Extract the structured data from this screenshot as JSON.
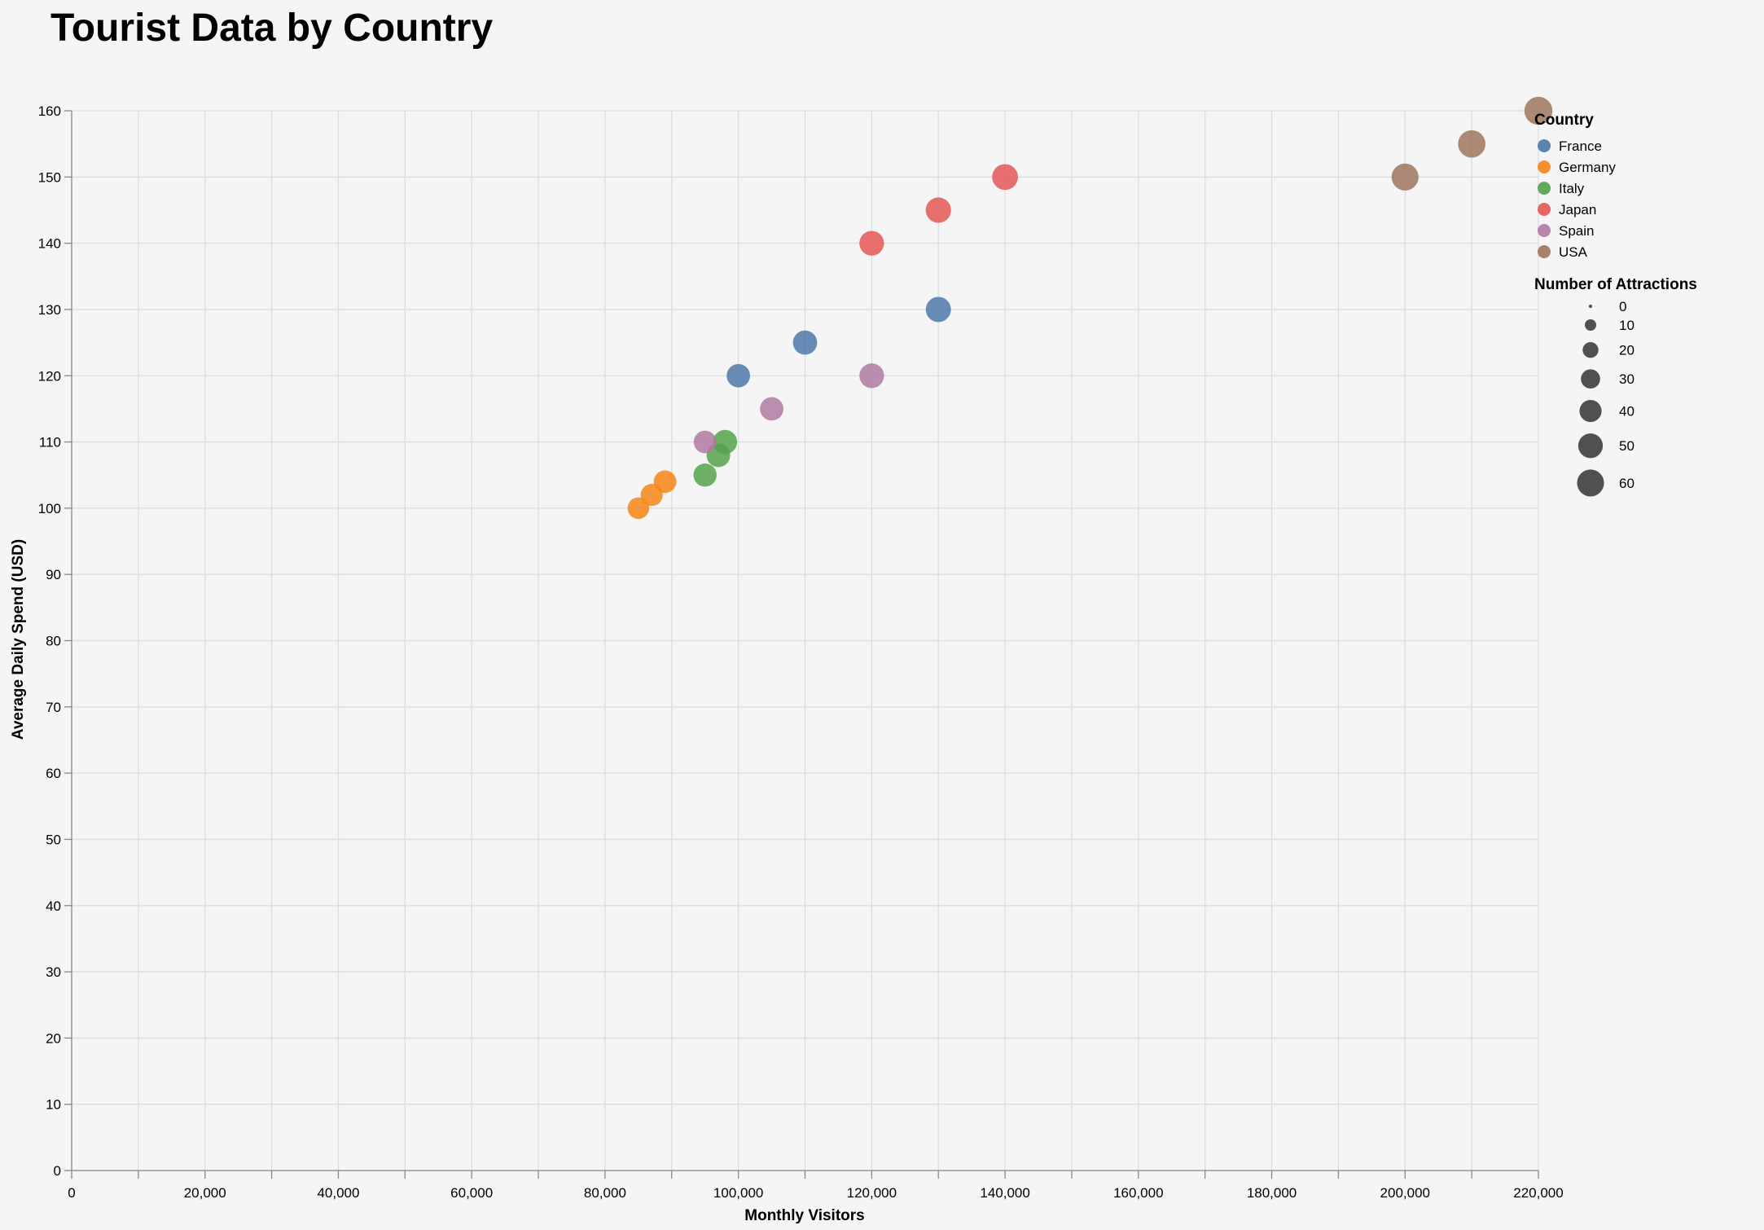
{
  "chart_data": {
    "type": "scatter",
    "title": "Tourist Data by Country",
    "xlabel": "Monthly Visitors",
    "ylabel": "Average Daily Spend (USD)",
    "xlim": [
      0,
      220000
    ],
    "ylim": [
      0,
      160
    ],
    "x_ticks": [
      0,
      20000,
      40000,
      60000,
      80000,
      100000,
      120000,
      140000,
      160000,
      180000,
      200000,
      220000
    ],
    "x_tick_labels": [
      "0",
      "20,000",
      "40,000",
      "60,000",
      "80,000",
      "100,000",
      "120,000",
      "140,000",
      "160,000",
      "180,000",
      "200,000",
      "220,000"
    ],
    "y_ticks": [
      0,
      10,
      20,
      30,
      40,
      50,
      60,
      70,
      80,
      90,
      100,
      110,
      120,
      130,
      140,
      150,
      160
    ],
    "y_tick_labels": [
      "0",
      "10",
      "20",
      "30",
      "40",
      "50",
      "60",
      "70",
      "80",
      "90",
      "100",
      "110",
      "120",
      "130",
      "140",
      "150",
      "160"
    ],
    "grid": true,
    "legend_position": "top-right",
    "color_legend_title": "Country",
    "size_legend_title": "Number of Attractions",
    "size_legend_values": [
      0,
      10,
      20,
      30,
      40,
      50,
      60
    ],
    "size_legend_labels": [
      "0",
      "10",
      "20",
      "30",
      "40",
      "50",
      "60"
    ],
    "series": [
      {
        "name": "France",
        "color": "#4c78a8",
        "points": [
          {
            "x": 100000,
            "y": 120,
            "size": 45
          },
          {
            "x": 110000,
            "y": 125,
            "size": 48
          },
          {
            "x": 130000,
            "y": 130,
            "size": 52
          }
        ]
      },
      {
        "name": "Germany",
        "color": "#f58518",
        "points": [
          {
            "x": 85000,
            "y": 100,
            "size": 38
          },
          {
            "x": 87000,
            "y": 102,
            "size": 40
          },
          {
            "x": 89000,
            "y": 104,
            "size": 42
          }
        ]
      },
      {
        "name": "Italy",
        "color": "#54a24b",
        "points": [
          {
            "x": 95000,
            "y": 105,
            "size": 44
          },
          {
            "x": 97000,
            "y": 108,
            "size": 46
          },
          {
            "x": 98000,
            "y": 110,
            "size": 48
          }
        ]
      },
      {
        "name": "Japan",
        "color": "#e45756",
        "points": [
          {
            "x": 120000,
            "y": 140,
            "size": 50
          },
          {
            "x": 130000,
            "y": 145,
            "size": 53
          },
          {
            "x": 140000,
            "y": 150,
            "size": 55
          }
        ]
      },
      {
        "name": "Spain",
        "color": "#b279a2",
        "points": [
          {
            "x": 95000,
            "y": 110,
            "size": 42
          },
          {
            "x": 105000,
            "y": 115,
            "size": 45
          },
          {
            "x": 120000,
            "y": 120,
            "size": 50
          }
        ]
      },
      {
        "name": "USA",
        "color": "#9d755d",
        "points": [
          {
            "x": 200000,
            "y": 150,
            "size": 60
          },
          {
            "x": 210000,
            "y": 155,
            "size": 62
          },
          {
            "x": 220000,
            "y": 160,
            "size": 65
          }
        ]
      }
    ]
  }
}
